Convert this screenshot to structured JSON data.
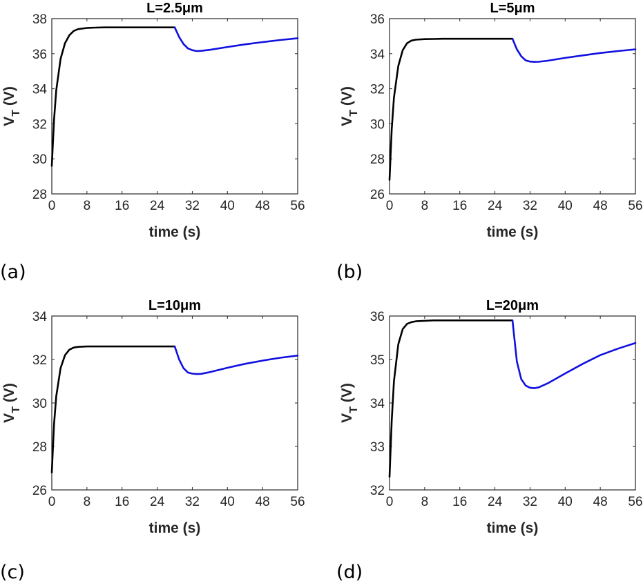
{
  "panel_labels": [
    "(a)",
    "(b)",
    "(c)",
    "(d)"
  ],
  "colors": {
    "stage1": "#000000",
    "stage2": "#1010e0",
    "axis": "#262626"
  },
  "chart_data": [
    {
      "type": "line",
      "title": "L=2.5μm",
      "xlabel": "time (s)",
      "ylabel": "V_T (V)",
      "xlim": [
        0,
        56
      ],
      "ylim": [
        28,
        38
      ],
      "xticks": [
        0,
        8,
        16,
        24,
        32,
        40,
        48,
        56
      ],
      "yticks": [
        28,
        30,
        32,
        34,
        36,
        38
      ],
      "grid": false,
      "series": [
        {
          "x": [
            0,
            0.5,
            1,
            2,
            3,
            4,
            5,
            6,
            8,
            10,
            12,
            16,
            20,
            24,
            28
          ],
          "y": [
            29.6,
            32.2,
            33.9,
            35.7,
            36.6,
            37.05,
            37.3,
            37.4,
            37.47,
            37.49,
            37.5,
            37.5,
            37.5,
            37.5,
            37.5
          ]
        },
        {
          "x": [
            28,
            29,
            30,
            31,
            32,
            33,
            34,
            36,
            40,
            44,
            48,
            52,
            56
          ],
          "y": [
            37.5,
            36.95,
            36.55,
            36.3,
            36.2,
            36.15,
            36.16,
            36.22,
            36.38,
            36.53,
            36.66,
            36.78,
            36.88
          ]
        }
      ]
    },
    {
      "type": "line",
      "title": "L=5μm",
      "xlabel": "time (s)",
      "ylabel": "V_T (V)",
      "xlim": [
        0,
        56
      ],
      "ylim": [
        26,
        36
      ],
      "xticks": [
        0,
        8,
        16,
        24,
        32,
        40,
        48,
        56
      ],
      "yticks": [
        26,
        28,
        30,
        32,
        34,
        36
      ],
      "grid": false,
      "series": [
        {
          "x": [
            0,
            0.5,
            1,
            2,
            3,
            4,
            5,
            6,
            8,
            10,
            12,
            16,
            20,
            24,
            28
          ],
          "y": [
            26.8,
            29.7,
            31.5,
            33.3,
            34.2,
            34.6,
            34.75,
            34.8,
            34.83,
            34.84,
            34.85,
            34.85,
            34.85,
            34.85,
            34.85
          ]
        },
        {
          "x": [
            28,
            29,
            30,
            31,
            32,
            33,
            34,
            36,
            40,
            44,
            48,
            52,
            56
          ],
          "y": [
            34.85,
            34.25,
            33.85,
            33.62,
            33.55,
            33.53,
            33.54,
            33.6,
            33.76,
            33.9,
            34.04,
            34.15,
            34.25
          ]
        }
      ]
    },
    {
      "type": "line",
      "title": "L=10μm",
      "xlabel": "time (s)",
      "ylabel": "V_T (V)",
      "xlim": [
        0,
        56
      ],
      "ylim": [
        26,
        34
      ],
      "xticks": [
        0,
        8,
        16,
        24,
        32,
        40,
        48,
        56
      ],
      "yticks": [
        26,
        28,
        30,
        32,
        34
      ],
      "grid": false,
      "series": [
        {
          "x": [
            0,
            0.5,
            1,
            2,
            3,
            4,
            5,
            6,
            8,
            10,
            12,
            16,
            20,
            24,
            28
          ],
          "y": [
            26.8,
            29.0,
            30.3,
            31.6,
            32.2,
            32.45,
            32.55,
            32.58,
            32.6,
            32.6,
            32.6,
            32.6,
            32.6,
            32.6,
            32.6
          ]
        },
        {
          "x": [
            28,
            29,
            30,
            31,
            32,
            33,
            34,
            36,
            40,
            44,
            48,
            52,
            56
          ],
          "y": [
            32.6,
            32.0,
            31.6,
            31.4,
            31.35,
            31.33,
            31.34,
            31.42,
            31.62,
            31.8,
            31.95,
            32.08,
            32.18
          ]
        }
      ]
    },
    {
      "type": "line",
      "title": "L=20μm",
      "xlabel": "time (s)",
      "ylabel": "V_T (V)",
      "xlim": [
        0,
        56
      ],
      "ylim": [
        32,
        36
      ],
      "xticks": [
        0,
        8,
        16,
        24,
        32,
        40,
        48,
        56
      ],
      "yticks": [
        32,
        33,
        34,
        35,
        36
      ],
      "grid": false,
      "series": [
        {
          "x": [
            0,
            0.5,
            1,
            2,
            3,
            4,
            5,
            6,
            8,
            10,
            12,
            16,
            20,
            24,
            28
          ],
          "y": [
            32.3,
            33.6,
            34.5,
            35.35,
            35.7,
            35.82,
            35.86,
            35.88,
            35.89,
            35.9,
            35.9,
            35.9,
            35.9,
            35.9,
            35.9
          ]
        },
        {
          "x": [
            28,
            29,
            30,
            31,
            32,
            33,
            34,
            36,
            40,
            44,
            48,
            52,
            56
          ],
          "y": [
            35.9,
            34.95,
            34.55,
            34.4,
            34.35,
            34.34,
            34.36,
            34.45,
            34.68,
            34.9,
            35.1,
            35.25,
            35.38
          ]
        }
      ]
    }
  ]
}
